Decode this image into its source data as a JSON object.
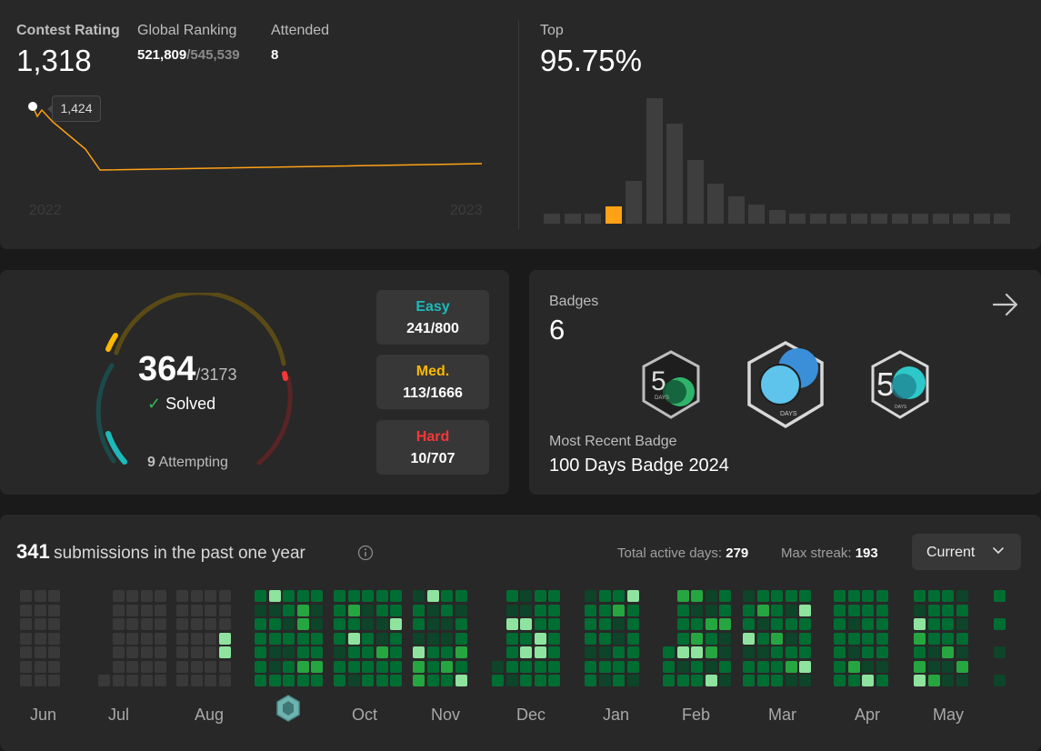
{
  "contest": {
    "rating_label": "Contest Rating",
    "rating_value": "1,318",
    "ranking_label": "Global Ranking",
    "ranking_value": "521,809",
    "ranking_total": "/545,539",
    "attended_label": "Attended",
    "attended_value": "8",
    "tooltip": "1,424",
    "year_start": "2022",
    "year_end": "2023",
    "top_label": "Top",
    "top_value": "95.75%",
    "highlight_color": "#ffa116",
    "histogram": [
      0.08,
      0.08,
      0.08,
      0.14,
      0.34,
      1.0,
      0.8,
      0.51,
      0.32,
      0.22,
      0.15,
      0.11,
      0.08,
      0.08,
      0.08,
      0.08,
      0.08,
      0.08,
      0.08,
      0.08,
      0.08,
      0.08,
      0.08
    ],
    "histogram_highlight_index": 3
  },
  "solved": {
    "count": "364",
    "total": "/3173",
    "solved_label": "Solved",
    "attempting_count": "9",
    "attempting_label": "Attempting",
    "easy_label": "Easy",
    "easy_value": "241/800",
    "med_label": "Med.",
    "med_value": "113/1666",
    "hard_label": "Hard",
    "hard_value": "10/707",
    "easy_color": "#1cbaba",
    "med_color": "#ffb700",
    "hard_color": "#f63737"
  },
  "badges": {
    "label": "Badges",
    "count": "6",
    "recent_label": "Most Recent Badge",
    "recent_value": "100 Days Badge 2024",
    "badge_items": [
      {
        "icon": "50-days-badge-icon",
        "text": "DAYS"
      },
      {
        "icon": "100-days-badge-icon",
        "text": "DAYS"
      },
      {
        "icon": "50-days-badge-icon",
        "text": "DAYS"
      }
    ]
  },
  "submissions": {
    "count": "341",
    "text": "submissions in the past one year",
    "active_label": "Total active days:",
    "active_value": "279",
    "streak_label": "Max streak:",
    "streak_value": "193",
    "select_value": "Current",
    "months": [
      "Jun",
      "Jul",
      "Aug",
      "Oct",
      "Nov",
      "Dec",
      "Jan",
      "Feb",
      "Mar",
      "Apr",
      "May"
    ],
    "colors": {
      "empty": "#393939",
      "low": "#0e4429",
      "mid": "#006d32",
      "high": "#26a641",
      "top": "#8ee49e"
    }
  }
}
